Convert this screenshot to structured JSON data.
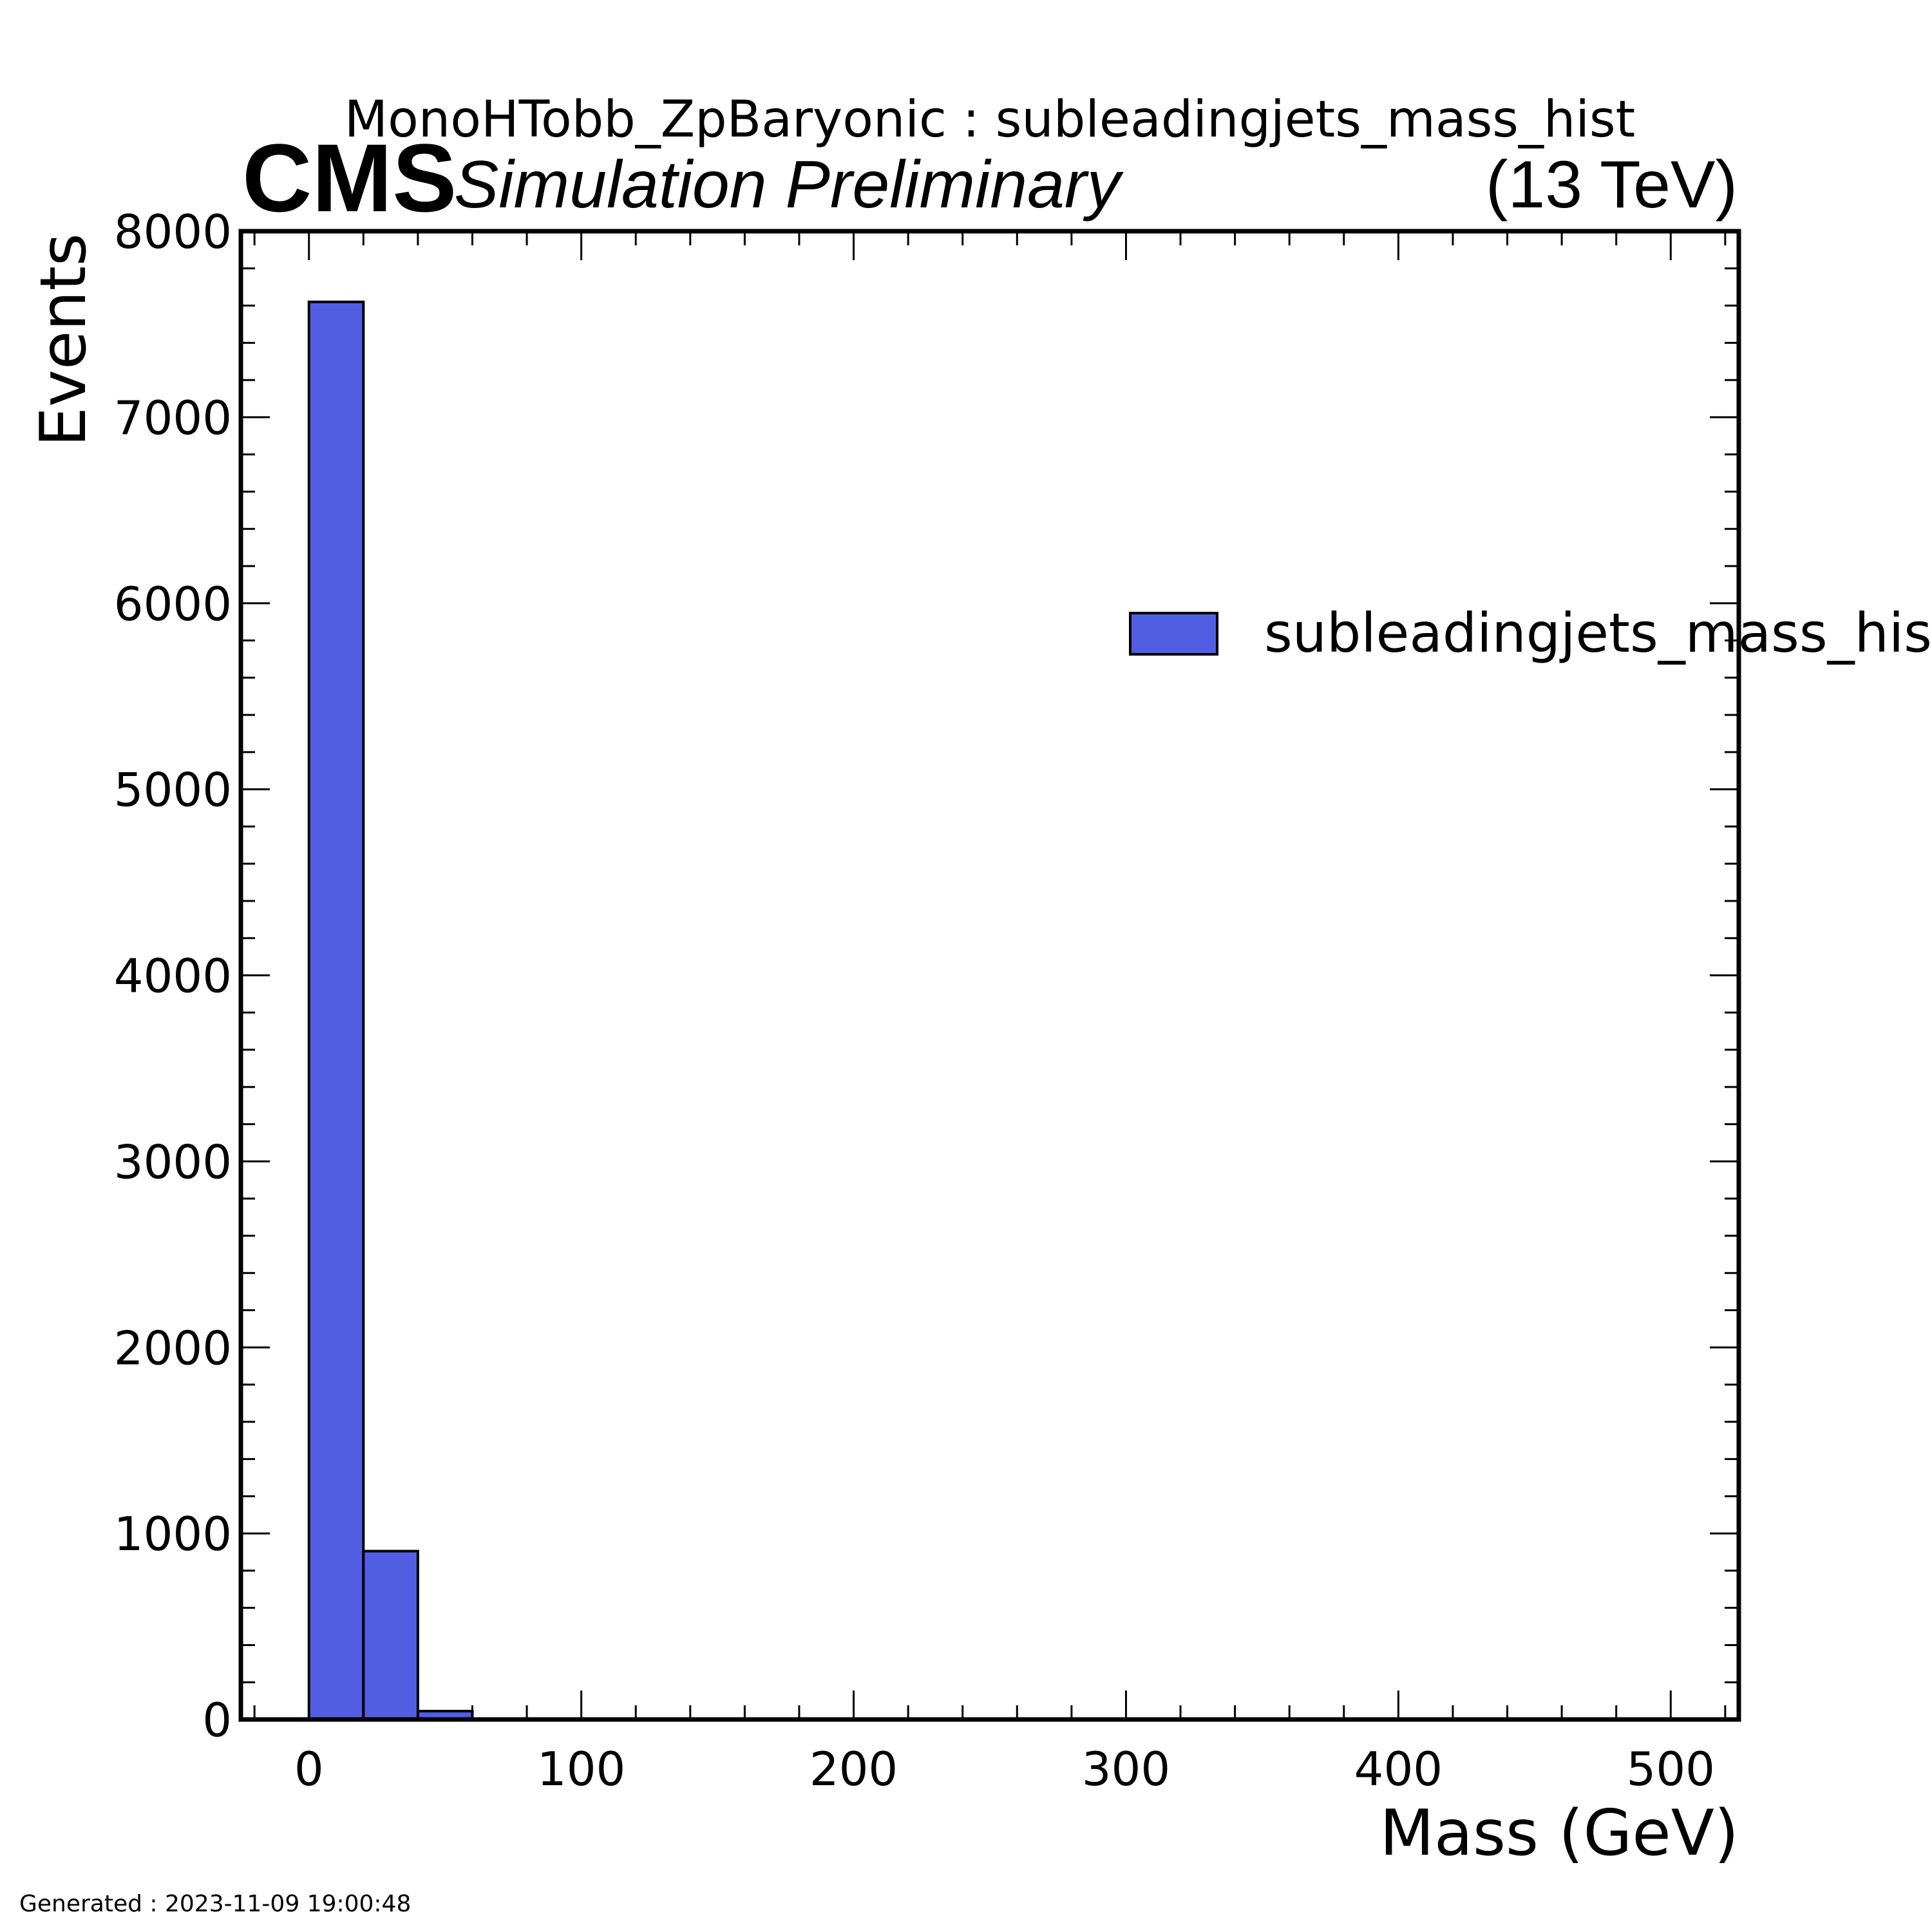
{
  "header": {
    "title": "MonoHTobb_ZpBaryonic : subleadingjets_mass_hist",
    "experiment": "CMS",
    "status": "Simulation Preliminary",
    "energy": "(13 TeV)"
  },
  "footer": {
    "generated": "Generated : 2023-11-09 19:00:48"
  },
  "colors": {
    "fill": "#525ee2",
    "edge": "#000000"
  },
  "chart_data": {
    "type": "bar",
    "histogram": true,
    "xlabel": "Mass (GeV)",
    "ylabel": "Events",
    "xlim": [
      -25,
      525
    ],
    "ylim": [
      0,
      8000
    ],
    "xticks": [
      0,
      100,
      200,
      300,
      400,
      500
    ],
    "yticks": [
      0,
      1000,
      2000,
      3000,
      4000,
      5000,
      6000,
      7000,
      8000
    ],
    "bin_edges": [
      0,
      20,
      40,
      60,
      80,
      100,
      120,
      140,
      160,
      180,
      200,
      220,
      240,
      260,
      280,
      300,
      320,
      340,
      360,
      380,
      400,
      420,
      440,
      460,
      480,
      500
    ],
    "series": [
      {
        "name": "subleadingjets_mass_hist",
        "values": [
          7620,
          905,
          45,
          3,
          1,
          0,
          0,
          0,
          0,
          0,
          0,
          0,
          0,
          0,
          0,
          0,
          0,
          0,
          0,
          0,
          0,
          0,
          0,
          0,
          0
        ]
      }
    ],
    "legend": "upper-right",
    "grid": false
  }
}
